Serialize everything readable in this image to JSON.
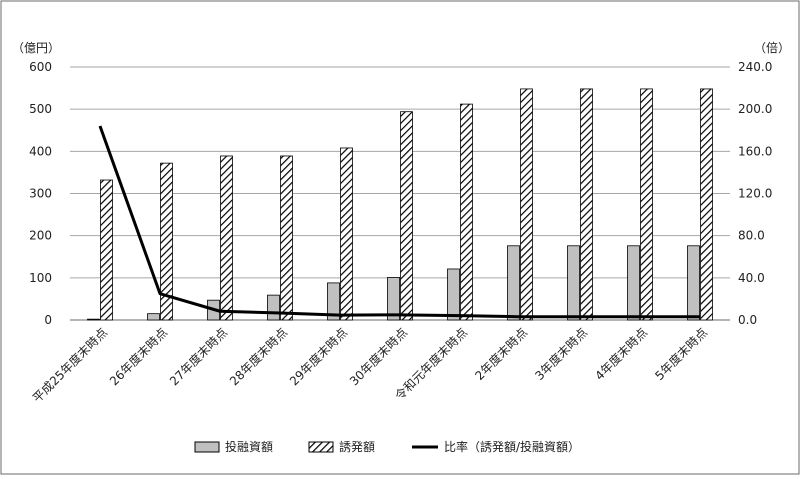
{
  "chart_data": {
    "type": "bar",
    "categories": [
      "平成25年度末時点",
      "26年度末時点",
      "27年度末時点",
      "28年度末時点",
      "29年度末時点",
      "30年度末時点",
      "令和元年度末時点",
      "2年度末時点",
      "3年度末時点",
      "4年度末時点",
      "5年度末時点"
    ],
    "series": [
      {
        "name": "投融資額",
        "kind": "bar",
        "axis": "left",
        "values": [
          2,
          15,
          47,
          59,
          88,
          101,
          121,
          176,
          176,
          176,
          176
        ]
      },
      {
        "name": "誘発額",
        "kind": "bar",
        "axis": "left",
        "values": [
          332,
          372,
          389,
          389,
          408,
          494,
          512,
          548,
          548,
          548,
          548
        ]
      },
      {
        "name": "比率（誘発額/投融資額）",
        "kind": "line",
        "axis": "right",
        "values": [
          184,
          25,
          8.3,
          6.6,
          4.6,
          4.9,
          4.2,
          3.1,
          3.1,
          3.1,
          3.1
        ]
      }
    ],
    "y_left": {
      "unit": "（億円）",
      "ylim": [
        0,
        600
      ],
      "ticks": [
        "0",
        "100",
        "200",
        "300",
        "400",
        "500",
        "600"
      ]
    },
    "y_right": {
      "unit": "（倍）",
      "ylim": [
        0,
        240
      ],
      "ticks": [
        "0.0",
        "40.0",
        "80.0",
        "120.0",
        "160.0",
        "200.0",
        "240.0"
      ]
    },
    "grid": true,
    "legend_position": "bottom",
    "colors": {
      "investment": "#c0c0c0",
      "induced_stroke": "#000000",
      "ratio_line": "#000000"
    }
  }
}
